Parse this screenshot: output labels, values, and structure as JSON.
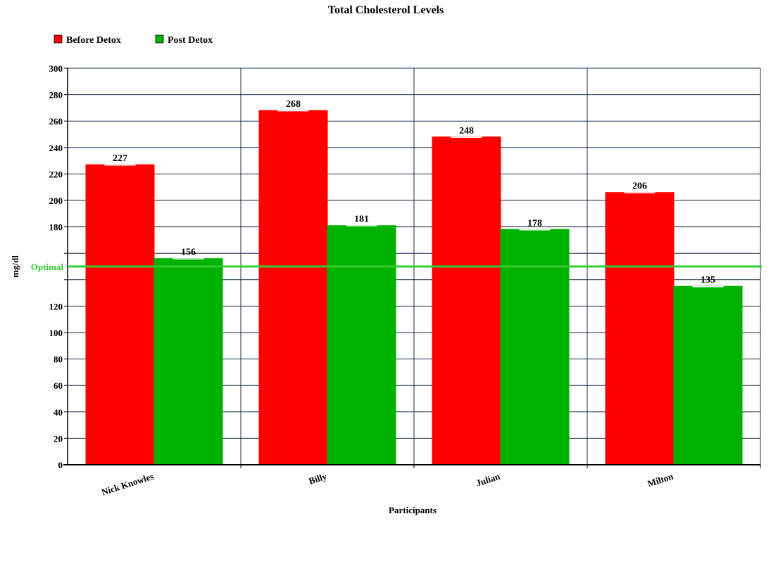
{
  "chart_data": {
    "type": "bar",
    "title": "Total Cholesterol Levels",
    "xlabel": "Participants",
    "ylabel": "mg/dl",
    "categories": [
      "Nick Knowles",
      "Billy",
      "Julian",
      "Milton"
    ],
    "series": [
      {
        "name": "Before Detox",
        "values": [
          227,
          268,
          248,
          206
        ],
        "color": "#ff0000"
      },
      {
        "name": "Post Detox",
        "values": [
          156,
          181,
          178,
          135
        ],
        "color": "#00b200"
      }
    ],
    "ylim": [
      0,
      300
    ],
    "yticks": [
      "0",
      "20",
      "40",
      "60",
      "80",
      "100",
      "120",
      "",
      "",
      "180",
      "200",
      "220",
      "240",
      "260",
      "280",
      "300"
    ],
    "reference_line": {
      "label": "Optimal",
      "value": 150,
      "color": "#33cc33"
    },
    "grid": true,
    "legend_position": "top-left"
  }
}
